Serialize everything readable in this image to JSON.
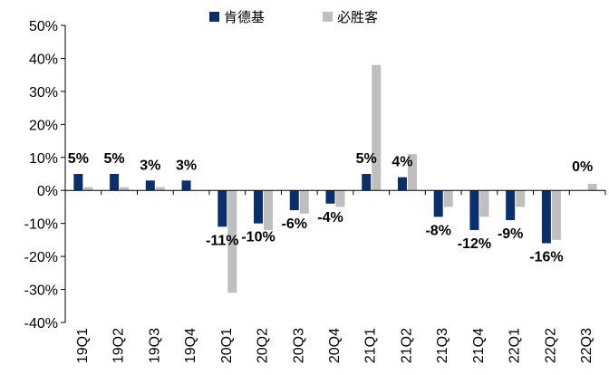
{
  "chart_data": {
    "type": "bar",
    "categories": [
      "19Q1",
      "19Q2",
      "19Q3",
      "19Q4",
      "20Q1",
      "20Q2",
      "20Q3",
      "20Q4",
      "21Q1",
      "21Q2",
      "21Q3",
      "21Q4",
      "22Q1",
      "22Q2",
      "22Q3"
    ],
    "series": [
      {
        "name": "肯德基",
        "color": "#0b2f6b",
        "values": [
          5,
          5,
          3,
          3,
          -11,
          -10,
          -6,
          -4,
          5,
          4,
          -8,
          -12,
          -9,
          -16,
          null
        ],
        "labels": [
          "5%",
          "5%",
          "3%",
          "3%",
          "-11%",
          "-10%",
          "-6%",
          "-4%",
          "5%",
          "4%",
          "-8%",
          "-12%",
          "-9%",
          "-16%",
          "0%"
        ]
      },
      {
        "name": "必胜客",
        "color": "#bfbfbf",
        "values": [
          1,
          1,
          1,
          0,
          -31,
          -12,
          -7,
          -5,
          38,
          11,
          -5,
          -8,
          -5,
          -15,
          2
        ]
      }
    ],
    "yaxis": {
      "min": -40,
      "max": 50,
      "step": 10,
      "tick_labels": [
        "-40%",
        "-30%",
        "-20%",
        "-10%",
        "0%",
        "10%",
        "20%",
        "30%",
        "40%",
        "50%"
      ]
    },
    "legend_position": "top-center",
    "grid": false
  }
}
